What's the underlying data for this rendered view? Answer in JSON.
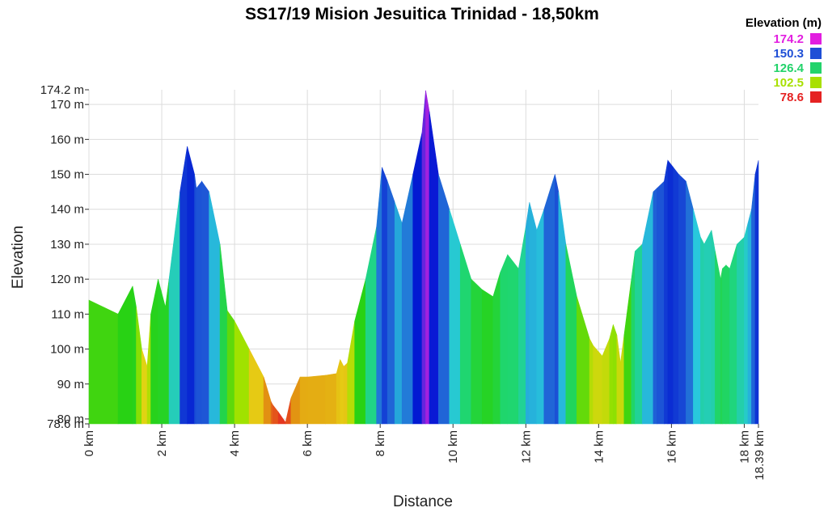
{
  "chart_data": {
    "type": "area",
    "title": "SS17/19 Mision Jesuitica Trinidad - 18,50km",
    "xlabel": "Distance",
    "ylabel": "Elevation",
    "xlim": [
      0,
      18.39
    ],
    "ylim": [
      78.6,
      174.2
    ],
    "x_ticks": [
      "0 km",
      "2 km",
      "4 km",
      "6 km",
      "8 km",
      "10 km",
      "12 km",
      "14 km",
      "16 km",
      "18 km",
      "18.39 km"
    ],
    "y_ticks": [
      "78.6 m",
      "80 m",
      "90 m",
      "100 m",
      "110 m",
      "120 m",
      "130 m",
      "140 m",
      "150 m",
      "160 m",
      "170 m",
      "174.2 m"
    ],
    "legend": {
      "title": "Elevation (m)",
      "placement": "top-right",
      "items": [
        {
          "label": "174.2",
          "color": "#e21ee0"
        },
        {
          "label": "150.3",
          "color": "#1f4fd6"
        },
        {
          "label": "126.4",
          "color": "#22d36a"
        },
        {
          "label": "102.5",
          "color": "#a8e000"
        },
        {
          "label": "78.6",
          "color": "#e52222"
        }
      ]
    },
    "series": [
      {
        "x": [
          0,
          0.8,
          1.2,
          1.3,
          1.45,
          1.6,
          1.7,
          1.9,
          2.1,
          2.2,
          2.5,
          2.7,
          2.9,
          2.95,
          3.1,
          3.3,
          3.6,
          3.8,
          4.0,
          4.4,
          4.8,
          5.0,
          5.05,
          5.2,
          5.4,
          5.55,
          5.8,
          6.0,
          6.5,
          6.8,
          6.9,
          7.0,
          7.1,
          7.3,
          7.6,
          7.9,
          8.05,
          8.2,
          8.4,
          8.6,
          8.9,
          9.15,
          9.25,
          9.35,
          9.6,
          9.9,
          10.2,
          10.5,
          10.8,
          11.1,
          11.3,
          11.5,
          11.8,
          12.0,
          12.1,
          12.3,
          12.5,
          12.8,
          12.9,
          13.1,
          13.4,
          13.75,
          13.85,
          14.1,
          14.3,
          14.4,
          14.5,
          14.6,
          14.7,
          14.9,
          15.0,
          15.2,
          15.5,
          15.6,
          15.8,
          15.9,
          16.05,
          16.2,
          16.4,
          16.6,
          16.8,
          16.9,
          17.1,
          17.2,
          17.35,
          17.4,
          17.5,
          17.6,
          17.8,
          18.0,
          18.1,
          18.2,
          18.3,
          18.39
        ],
        "y": [
          114,
          110,
          118,
          112,
          100,
          95,
          110,
          120,
          112,
          120,
          145,
          158,
          150,
          146,
          148,
          145,
          130,
          111,
          108,
          100,
          92,
          85,
          84,
          82,
          79,
          86,
          92,
          92,
          92.5,
          93,
          97,
          95,
          96,
          108,
          120,
          135,
          152,
          148,
          142,
          136,
          150,
          162,
          174,
          168,
          150,
          140,
          130,
          120,
          117,
          115,
          122,
          127,
          123,
          135,
          142,
          134,
          140,
          150,
          145,
          130,
          115,
          103,
          101,
          98,
          103,
          107,
          104,
          96,
          104,
          120,
          128,
          130,
          145,
          146,
          148,
          154,
          152,
          150,
          148,
          140,
          132,
          130,
          134,
          128,
          120,
          123,
          124,
          123,
          130,
          132,
          136,
          140,
          150,
          154
        ]
      }
    ]
  }
}
